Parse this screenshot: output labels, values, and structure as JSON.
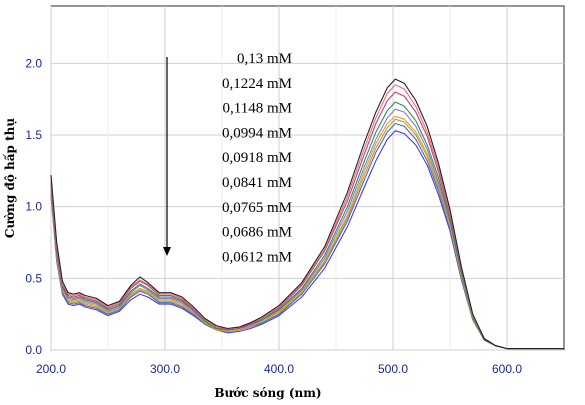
{
  "chart_data": {
    "type": "line",
    "title": "",
    "xlabel": "Bước sóng (nm)",
    "ylabel": "Cường độ hấp thụ",
    "xlim": [
      200,
      650
    ],
    "ylim": [
      0,
      2.4
    ],
    "x_ticks": [
      "200.0",
      "300.0",
      "400.0",
      "500.0",
      "600.0"
    ],
    "y_ticks": [
      "0.0",
      "0.5",
      "1.0",
      "1.5",
      "2.0"
    ],
    "grid": true,
    "legend_position": "top-center",
    "legend_arrow": "down",
    "x": [
      200,
      205,
      210,
      215,
      220,
      225,
      230,
      240,
      250,
      260,
      270,
      278,
      285,
      295,
      305,
      315,
      325,
      335,
      345,
      355,
      365,
      375,
      385,
      400,
      420,
      440,
      460,
      475,
      485,
      495,
      502,
      510,
      520,
      530,
      540,
      550,
      560,
      570,
      580,
      590,
      600,
      620,
      650
    ],
    "series": [
      {
        "name": "0,13 mM",
        "color": "#222222",
        "values": [
          1.22,
          0.75,
          0.48,
          0.4,
          0.39,
          0.4,
          0.38,
          0.36,
          0.31,
          0.34,
          0.45,
          0.51,
          0.47,
          0.4,
          0.4,
          0.37,
          0.3,
          0.22,
          0.17,
          0.15,
          0.16,
          0.19,
          0.23,
          0.31,
          0.47,
          0.72,
          1.1,
          1.45,
          1.66,
          1.83,
          1.89,
          1.86,
          1.74,
          1.56,
          1.3,
          0.98,
          0.58,
          0.25,
          0.08,
          0.03,
          0.01,
          0.01,
          0.01
        ]
      },
      {
        "name": "0,1224 mM",
        "color": "#e07070",
        "values": [
          1.2,
          0.72,
          0.46,
          0.39,
          0.38,
          0.39,
          0.37,
          0.35,
          0.3,
          0.33,
          0.44,
          0.49,
          0.46,
          0.39,
          0.39,
          0.36,
          0.29,
          0.21,
          0.16,
          0.15,
          0.16,
          0.19,
          0.22,
          0.3,
          0.46,
          0.7,
          1.07,
          1.41,
          1.62,
          1.79,
          1.85,
          1.82,
          1.7,
          1.52,
          1.27,
          0.96,
          0.57,
          0.24,
          0.08,
          0.03,
          0.01,
          0.01,
          0.01
        ]
      },
      {
        "name": "0,1148 mM",
        "color": "#c83a7a",
        "values": [
          1.18,
          0.7,
          0.45,
          0.38,
          0.37,
          0.38,
          0.36,
          0.34,
          0.29,
          0.32,
          0.43,
          0.48,
          0.45,
          0.38,
          0.38,
          0.35,
          0.28,
          0.21,
          0.16,
          0.14,
          0.15,
          0.18,
          0.22,
          0.29,
          0.45,
          0.69,
          1.04,
          1.37,
          1.58,
          1.74,
          1.8,
          1.77,
          1.66,
          1.49,
          1.24,
          0.94,
          0.56,
          0.24,
          0.08,
          0.03,
          0.01,
          0.01,
          0.01
        ]
      },
      {
        "name": "0,0994 mM",
        "color": "#2e8b57",
        "values": [
          1.16,
          0.68,
          0.44,
          0.37,
          0.36,
          0.37,
          0.35,
          0.33,
          0.28,
          0.31,
          0.41,
          0.46,
          0.43,
          0.37,
          0.37,
          0.34,
          0.28,
          0.2,
          0.15,
          0.14,
          0.15,
          0.18,
          0.21,
          0.28,
          0.43,
          0.66,
          1.0,
          1.32,
          1.52,
          1.67,
          1.73,
          1.7,
          1.6,
          1.43,
          1.2,
          0.91,
          0.54,
          0.23,
          0.07,
          0.03,
          0.01,
          0.01,
          0.01
        ]
      },
      {
        "name": "0,0918 mM",
        "color": "#8a7ad8",
        "values": [
          1.14,
          0.66,
          0.43,
          0.36,
          0.35,
          0.36,
          0.34,
          0.32,
          0.27,
          0.3,
          0.4,
          0.45,
          0.42,
          0.36,
          0.36,
          0.33,
          0.27,
          0.2,
          0.15,
          0.14,
          0.15,
          0.17,
          0.21,
          0.28,
          0.42,
          0.64,
          0.97,
          1.28,
          1.47,
          1.62,
          1.68,
          1.66,
          1.56,
          1.4,
          1.17,
          0.89,
          0.53,
          0.23,
          0.07,
          0.03,
          0.01,
          0.01,
          0.01
        ]
      },
      {
        "name": "0,0841 mM",
        "color": "#b8b020",
        "values": [
          1.12,
          0.65,
          0.42,
          0.35,
          0.34,
          0.35,
          0.33,
          0.31,
          0.26,
          0.29,
          0.39,
          0.43,
          0.41,
          0.35,
          0.35,
          0.32,
          0.26,
          0.19,
          0.15,
          0.13,
          0.14,
          0.17,
          0.2,
          0.27,
          0.41,
          0.62,
          0.94,
          1.25,
          1.44,
          1.58,
          1.63,
          1.61,
          1.52,
          1.37,
          1.15,
          0.87,
          0.52,
          0.22,
          0.07,
          0.03,
          0.01,
          0.01,
          0.01
        ]
      },
      {
        "name": "0,0765 mM",
        "color": "#e08a30",
        "values": [
          1.11,
          0.64,
          0.41,
          0.34,
          0.33,
          0.34,
          0.32,
          0.3,
          0.26,
          0.29,
          0.38,
          0.42,
          0.4,
          0.34,
          0.34,
          0.31,
          0.26,
          0.19,
          0.14,
          0.13,
          0.14,
          0.16,
          0.2,
          0.26,
          0.4,
          0.61,
          0.92,
          1.22,
          1.41,
          1.55,
          1.61,
          1.59,
          1.5,
          1.35,
          1.13,
          0.86,
          0.51,
          0.22,
          0.07,
          0.03,
          0.01,
          0.01,
          0.01
        ]
      },
      {
        "name": "0,0686 mM",
        "color": "#3a70c8",
        "values": [
          1.1,
          0.63,
          0.4,
          0.33,
          0.32,
          0.33,
          0.31,
          0.29,
          0.25,
          0.28,
          0.37,
          0.41,
          0.39,
          0.33,
          0.33,
          0.3,
          0.25,
          0.18,
          0.14,
          0.13,
          0.14,
          0.16,
          0.19,
          0.25,
          0.39,
          0.6,
          0.9,
          1.19,
          1.38,
          1.52,
          1.58,
          1.56,
          1.47,
          1.32,
          1.11,
          0.85,
          0.5,
          0.21,
          0.07,
          0.03,
          0.01,
          0.01,
          0.01
        ]
      },
      {
        "name": "0,0612 mM",
        "color": "#4a3ad8",
        "values": [
          1.08,
          0.62,
          0.39,
          0.32,
          0.31,
          0.32,
          0.3,
          0.28,
          0.24,
          0.27,
          0.35,
          0.39,
          0.37,
          0.32,
          0.32,
          0.29,
          0.24,
          0.18,
          0.14,
          0.12,
          0.13,
          0.15,
          0.18,
          0.24,
          0.37,
          0.57,
          0.86,
          1.14,
          1.32,
          1.47,
          1.53,
          1.51,
          1.43,
          1.29,
          1.08,
          0.83,
          0.49,
          0.21,
          0.07,
          0.03,
          0.01,
          0.01,
          0.01
        ]
      }
    ]
  }
}
